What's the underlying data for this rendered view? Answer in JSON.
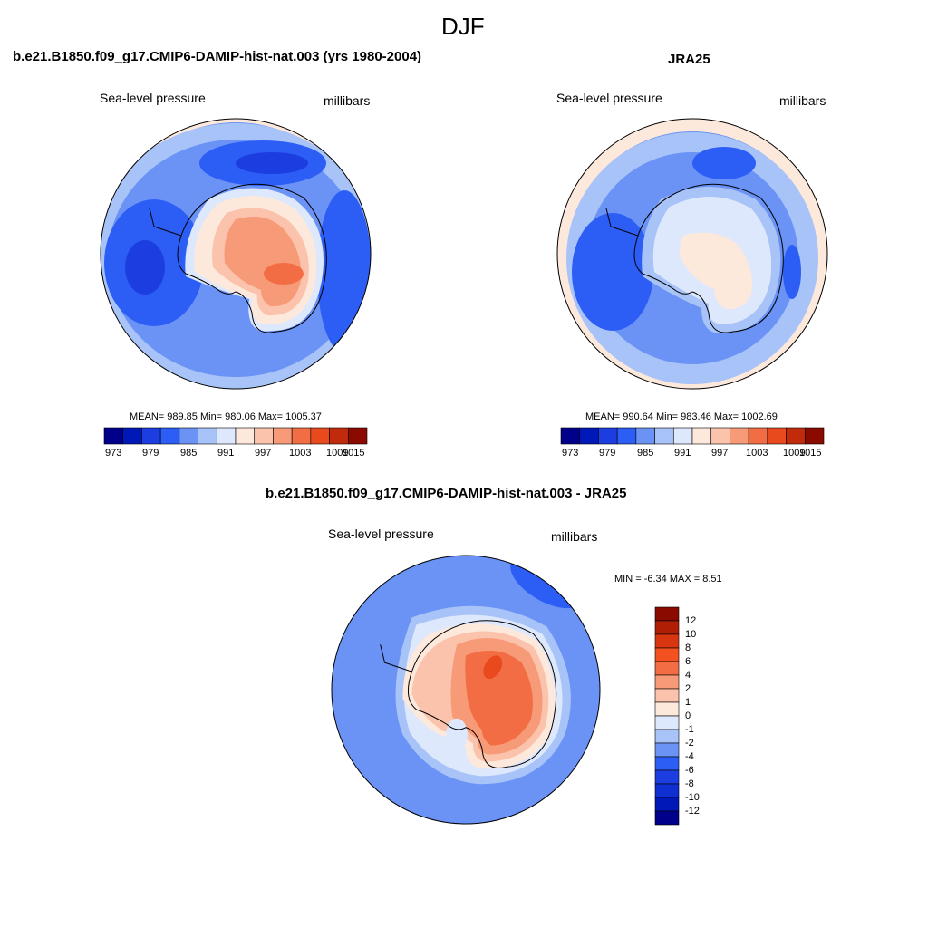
{
  "page": {
    "season": "DJF"
  },
  "colors": {
    "palette": [
      "#00008a",
      "#0018b8",
      "#1c3de0",
      "#2c5ef5",
      "#6a93f5",
      "#a8c3f8",
      "#dde8fc",
      "#fde8dc",
      "#fbc3ac",
      "#f79a78",
      "#f36d44",
      "#e84a1e",
      "#c22a0c",
      "#8a0a00"
    ]
  },
  "chart_data": [
    {
      "type": "heatmap",
      "title": "b.e21.B1850.f09_g17.CMIP6-DAMIP-hist-nat.003 (yrs 1980-2004)",
      "left_label": "Sea-level pressure",
      "right_label": "millibars",
      "stats": "MEAN= 989.85  Min= 980.06  Max= 1005.37",
      "mean": 989.85,
      "min": 980.06,
      "max": 1005.37,
      "levels": [
        "973",
        "979",
        "985",
        "991",
        "997",
        "1003",
        "1009",
        "1015"
      ]
    },
    {
      "type": "heatmap",
      "title": "JRA25",
      "left_label": "Sea-level pressure",
      "right_label": "millibars",
      "stats": "MEAN= 990.64  Min= 983.46  Max= 1002.69",
      "mean": 990.64,
      "min": 983.46,
      "max": 1002.69,
      "levels": [
        "973",
        "979",
        "985",
        "991",
        "997",
        "1003",
        "1009",
        "1015"
      ]
    },
    {
      "type": "heatmap",
      "title": "b.e21.B1850.f09_g17.CMIP6-DAMIP-hist-nat.003 - JRA25",
      "left_label": "Sea-level pressure",
      "right_label": "millibars",
      "stats": "MIN =  -6.34 MAX =   8.51",
      "min": -6.34,
      "max": 8.51,
      "levels": [
        "12",
        "10",
        "8",
        "6",
        "4",
        "2",
        "1",
        "0",
        "-1",
        "-2",
        "-4",
        "-6",
        "-8",
        "-10",
        "-12"
      ]
    }
  ]
}
